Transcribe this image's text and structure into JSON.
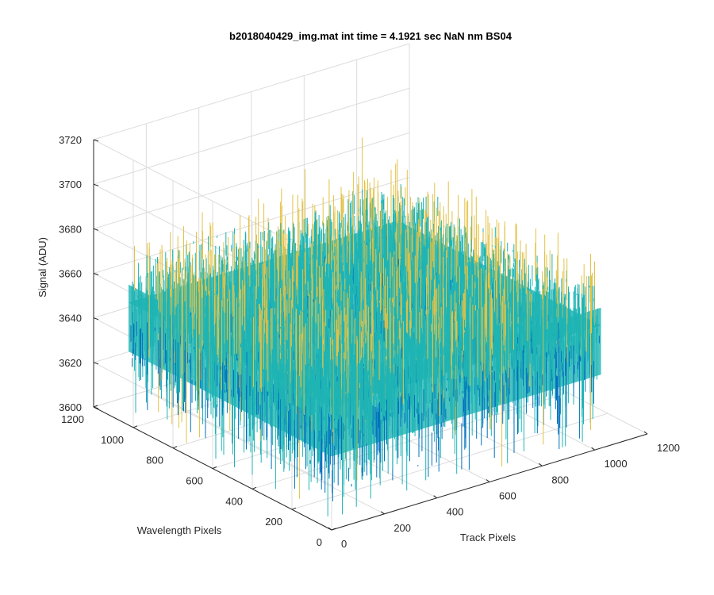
{
  "chart_data": {
    "type": "surface",
    "title": "b2018040429_img.mat int time = 4.1921 sec  NaN nm BS04",
    "xlabel": "Track Pixels",
    "ylabel": "Wavelength Pixels",
    "zlabel": "Signal (ADU)",
    "xlim": [
      0,
      1200
    ],
    "ylim": [
      0,
      1200
    ],
    "zlim": [
      3600,
      3720
    ],
    "xticks": [
      "0",
      "200",
      "400",
      "600",
      "800",
      "1000",
      "1200"
    ],
    "yticks": [
      "0",
      "200",
      "400",
      "600",
      "800",
      "1000",
      "1200"
    ],
    "zticks": [
      "3600",
      "3620",
      "3640",
      "3660",
      "3680",
      "3700",
      "3720"
    ],
    "grid": true,
    "data_extent": {
      "x": [
        0,
        1024
      ],
      "y": [
        0,
        1024
      ]
    },
    "signal_level": {
      "mean": 3655,
      "min": 3615,
      "max": 3705
    },
    "colors": {
      "low": "#0072bd",
      "mid": "#1fb4b4",
      "high": "#e3c246",
      "axis": "#262626",
      "grid": "#dcdcdc"
    }
  }
}
